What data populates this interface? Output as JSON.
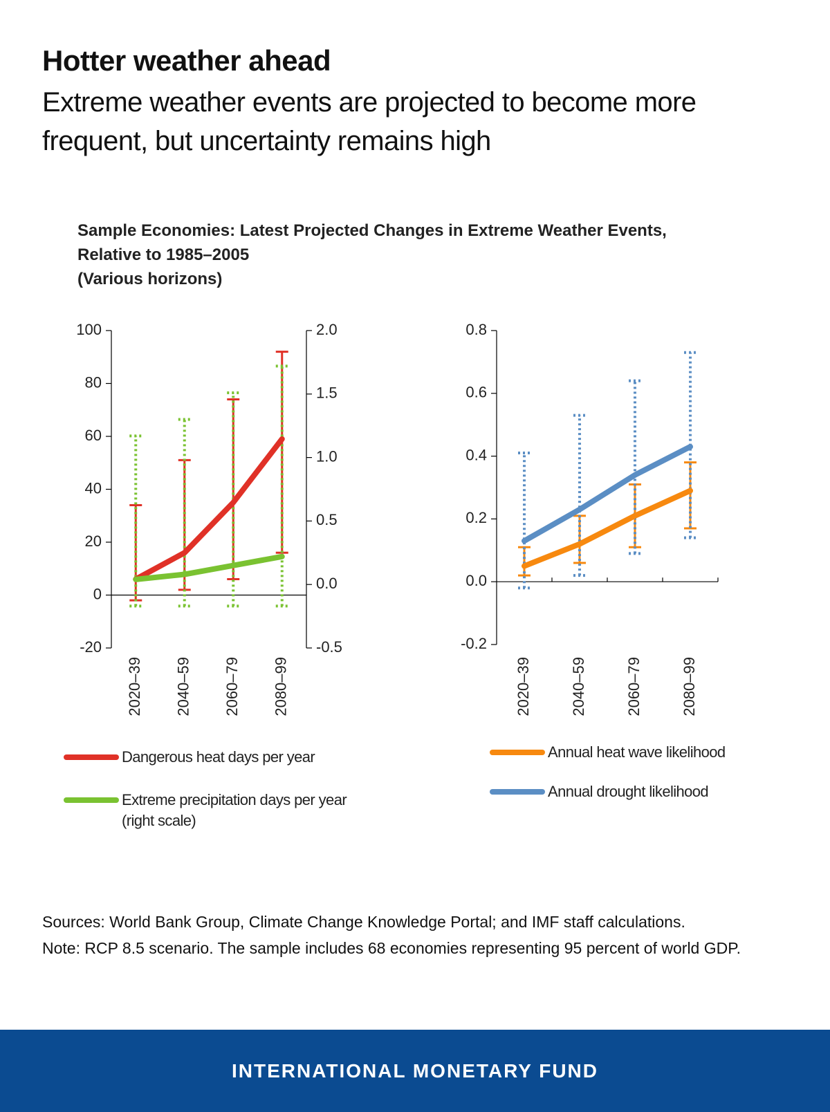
{
  "header": {
    "title": "Hotter weather ahead",
    "subtitle": "Extreme weather events are projected to become more frequent, but uncertainty remains high"
  },
  "figure_title": [
    "Sample Economies: Latest Projected Changes in Extreme Weather Events,",
    "Relative to 1985–2005",
    "(Various horizons)"
  ],
  "chart_data": [
    {
      "type": "line",
      "categories": [
        "2020–39",
        "2040–59",
        "2060–79",
        "2080–99"
      ],
      "ylim": [
        -20,
        100
      ],
      "yticks": [
        -20,
        0,
        20,
        40,
        60,
        80,
        100
      ],
      "y2lim": [
        -0.5,
        2.0
      ],
      "y2ticks": [
        -0.5,
        {
          "value": 0,
          "label": "0.0"
        },
        0.5,
        {
          "value": 1,
          "label": "1.0"
        },
        1.5,
        {
          "value": 2,
          "label": "2.0"
        }
      ],
      "legend": "bottom",
      "series": [
        {
          "name": "Dangerous heat days per year",
          "color": "#e03127",
          "error_style": "solid",
          "values": [
            6,
            16,
            35,
            59
          ],
          "low": [
            -2,
            2,
            6,
            16
          ],
          "high": [
            34,
            51,
            74,
            92
          ]
        },
        {
          "name": "Extreme precipitation days per year (right scale)",
          "color": "#7ac231",
          "axis": "y2",
          "error_style": "dotted",
          "values": [
            0.04,
            0.08,
            0.15,
            0.22
          ],
          "low": [
            -0.17,
            -0.17,
            -0.17,
            -0.17
          ],
          "high": [
            1.17,
            1.3,
            1.51,
            1.72
          ]
        }
      ]
    },
    {
      "type": "line",
      "categories": [
        "2020–39",
        "2040–59",
        "2060–79",
        "2080–99"
      ],
      "ylim": [
        -0.2,
        0.8
      ],
      "yticks": [
        -0.2,
        {
          "value": 0,
          "label": "0.0"
        },
        0.2,
        0.4,
        0.6,
        0.8
      ],
      "legend": "bottom",
      "category_ticks": true,
      "series": [
        {
          "name": "Annual heat wave likelihood",
          "color": "#f7890f",
          "error_style": "solid",
          "values": [
            0.05,
            0.12,
            0.21,
            0.29
          ],
          "low": [
            0.02,
            0.06,
            0.11,
            0.17
          ],
          "high": [
            0.11,
            0.21,
            0.31,
            0.38
          ]
        },
        {
          "name": "Annual drought likelihood",
          "color": "#5b8ec4",
          "error_style": "dotted",
          "values": [
            0.13,
            0.23,
            0.34,
            0.43
          ],
          "low": [
            -0.02,
            0.02,
            0.09,
            0.14
          ],
          "high": [
            0.41,
            0.53,
            0.64,
            0.73
          ]
        }
      ]
    }
  ],
  "footnotes": {
    "sources": "Sources: World Bank Group, Climate Change Knowledge Portal; and IMF staff calculations.",
    "note": "Note: RCP 8.5 scenario. The sample includes 68 economies representing 95 percent of world GDP."
  },
  "footer": "INTERNATIONAL MONETARY FUND"
}
